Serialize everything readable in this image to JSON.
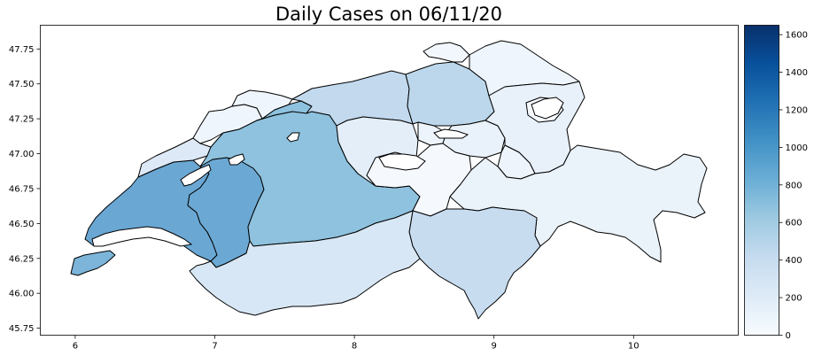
{
  "title": "Daily Cases on 06/11/20",
  "map": {
    "x_ticks": [
      "6",
      "7",
      "8",
      "9",
      "10"
    ],
    "y_ticks": [
      "47.75",
      "47.50",
      "47.25",
      "47.00",
      "46.75",
      "46.50",
      "46.25",
      "46.00",
      "45.75"
    ],
    "xlim": [
      5.75,
      10.75
    ],
    "ylim": [
      45.7,
      47.92
    ]
  },
  "colorbar": {
    "ticks": [
      "1600",
      "1400",
      "1200",
      "1000",
      "800",
      "600",
      "400",
      "200",
      "0"
    ],
    "min": 0,
    "max": 1650,
    "colors": [
      "#f7fbff",
      "#deebf7",
      "#c6dbef",
      "#9ecae1",
      "#6baed6",
      "#4292c6",
      "#2171b5",
      "#08519c",
      "#08306b"
    ]
  },
  "region_colors": {
    "vaud": "#6aa7d3",
    "fribourg": "#6ba9d4",
    "bern": "#8ec2de",
    "valais": "#d8e7f5",
    "geneva": "#7cb4da",
    "neuchatel": "#dde9f6",
    "jura": "#eff5fc",
    "solothurn": "#8ec2de",
    "basel": "#eef5fc",
    "aargau": "#c2d9ee",
    "zurich": "#bcd7eb",
    "lucerne": "#e3eef8",
    "central": "#f5f9fe",
    "ticino": "#c8dcf0",
    "graubunden": "#eaf2fa",
    "stgallen": "#e8f1fa",
    "thurgau": "#eef5fc",
    "schaffhausen": "#f2f7fd",
    "appenzell": "#f5f9fe",
    "glarus": "#edf4fb",
    "schwyz": "#e9f2fa",
    "zug": "#edf4fb"
  }
}
